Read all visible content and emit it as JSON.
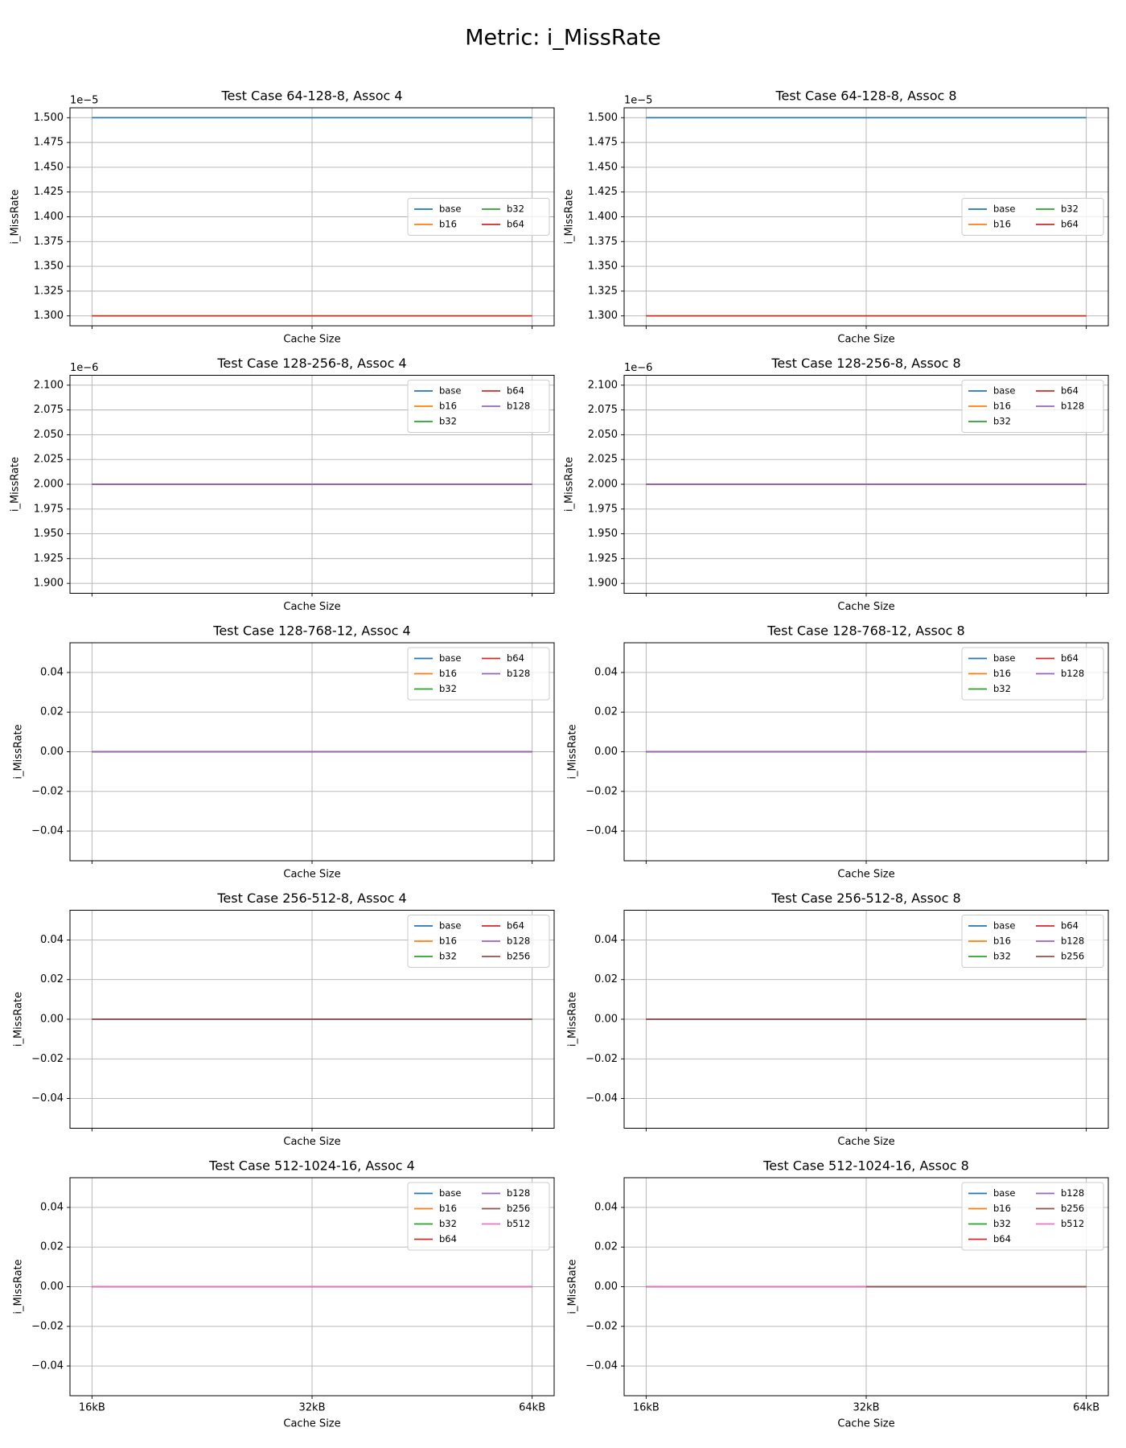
{
  "title": "Metric: i_MissRate",
  "chart_data": [
    {
      "type": "line",
      "title": "Test Case 64-128-8, Assoc 4",
      "xlabel": "Cache Size",
      "ylabel": "i_MissRate",
      "offset_label": "1e−5",
      "categories": [
        "16kB",
        "32kB",
        "64kB"
      ],
      "ylim": [
        1.29e-05,
        1.51e-05
      ],
      "yticks": [
        {
          "value": 1.3e-05,
          "label": "1.300"
        },
        {
          "value": 1.325e-05,
          "label": "1.325"
        },
        {
          "value": 1.35e-05,
          "label": "1.350"
        },
        {
          "value": 1.375e-05,
          "label": "1.375"
        },
        {
          "value": 1.4e-05,
          "label": "1.400"
        },
        {
          "value": 1.425e-05,
          "label": "1.425"
        },
        {
          "value": 1.45e-05,
          "label": "1.450"
        },
        {
          "value": 1.475e-05,
          "label": "1.475"
        },
        {
          "value": 1.5e-05,
          "label": "1.500"
        }
      ],
      "grid": true,
      "legend_loc": "center right",
      "series": [
        {
          "name": "base",
          "color": "#1f77b4",
          "values": [
            1.5e-05,
            1.5e-05,
            1.5e-05
          ]
        },
        {
          "name": "b16",
          "color": "#ff7f0e",
          "values": [
            1.3e-05,
            1.3e-05,
            1.3e-05
          ]
        },
        {
          "name": "b32",
          "color": "#2ca02c",
          "values": [
            1.3e-05,
            1.3e-05,
            1.3e-05
          ]
        },
        {
          "name": "b64",
          "color": "#d62728",
          "values": [
            1.3e-05,
            1.3e-05,
            1.3e-05
          ]
        }
      ]
    },
    {
      "type": "line",
      "title": "Test Case 64-128-8, Assoc 8",
      "xlabel": "Cache Size",
      "ylabel": "i_MissRate",
      "offset_label": "1e−5",
      "categories": [
        "16kB",
        "32kB",
        "64kB"
      ],
      "ylim": [
        1.29e-05,
        1.51e-05
      ],
      "yticks": [
        {
          "value": 1.3e-05,
          "label": "1.300"
        },
        {
          "value": 1.325e-05,
          "label": "1.325"
        },
        {
          "value": 1.35e-05,
          "label": "1.350"
        },
        {
          "value": 1.375e-05,
          "label": "1.375"
        },
        {
          "value": 1.4e-05,
          "label": "1.400"
        },
        {
          "value": 1.425e-05,
          "label": "1.425"
        },
        {
          "value": 1.45e-05,
          "label": "1.450"
        },
        {
          "value": 1.475e-05,
          "label": "1.475"
        },
        {
          "value": 1.5e-05,
          "label": "1.500"
        }
      ],
      "grid": true,
      "legend_loc": "center right",
      "series": [
        {
          "name": "base",
          "color": "#1f77b4",
          "values": [
            1.5e-05,
            1.5e-05,
            1.5e-05
          ]
        },
        {
          "name": "b16",
          "color": "#ff7f0e",
          "values": [
            1.3e-05,
            1.3e-05,
            1.3e-05
          ]
        },
        {
          "name": "b32",
          "color": "#2ca02c",
          "values": [
            1.3e-05,
            1.3e-05,
            1.3e-05
          ]
        },
        {
          "name": "b64",
          "color": "#d62728",
          "values": [
            1.3e-05,
            1.3e-05,
            1.3e-05
          ]
        }
      ]
    },
    {
      "type": "line",
      "title": "Test Case 128-256-8, Assoc 4",
      "xlabel": "Cache Size",
      "ylabel": "i_MissRate",
      "offset_label": "1e−6",
      "categories": [
        "16kB",
        "32kB",
        "64kB"
      ],
      "ylim": [
        1.89e-06,
        2.11e-06
      ],
      "yticks": [
        {
          "value": 1.9e-06,
          "label": "1.900"
        },
        {
          "value": 1.925e-06,
          "label": "1.925"
        },
        {
          "value": 1.95e-06,
          "label": "1.950"
        },
        {
          "value": 1.975e-06,
          "label": "1.975"
        },
        {
          "value": 2e-06,
          "label": "2.000"
        },
        {
          "value": 2.025e-06,
          "label": "2.025"
        },
        {
          "value": 2.05e-06,
          "label": "2.050"
        },
        {
          "value": 2.075e-06,
          "label": "2.075"
        },
        {
          "value": 2.1e-06,
          "label": "2.100"
        }
      ],
      "grid": true,
      "legend_loc": "upper right",
      "series": [
        {
          "name": "base",
          "color": "#1f77b4",
          "values": [
            2e-06,
            2e-06,
            2e-06
          ]
        },
        {
          "name": "b16",
          "color": "#ff7f0e",
          "values": [
            2e-06,
            2e-06,
            2e-06
          ]
        },
        {
          "name": "b32",
          "color": "#2ca02c",
          "values": [
            2e-06,
            2e-06,
            2e-06
          ]
        },
        {
          "name": "b64",
          "color": "#d62728",
          "values": [
            2e-06,
            2e-06,
            2e-06
          ]
        },
        {
          "name": "b128",
          "color": "#9467bd",
          "values": [
            2e-06,
            2e-06,
            2e-06
          ]
        }
      ]
    },
    {
      "type": "line",
      "title": "Test Case 128-256-8, Assoc 8",
      "xlabel": "Cache Size",
      "ylabel": "i_MissRate",
      "offset_label": "1e−6",
      "categories": [
        "16kB",
        "32kB",
        "64kB"
      ],
      "ylim": [
        1.89e-06,
        2.11e-06
      ],
      "yticks": [
        {
          "value": 1.9e-06,
          "label": "1.900"
        },
        {
          "value": 1.925e-06,
          "label": "1.925"
        },
        {
          "value": 1.95e-06,
          "label": "1.950"
        },
        {
          "value": 1.975e-06,
          "label": "1.975"
        },
        {
          "value": 2e-06,
          "label": "2.000"
        },
        {
          "value": 2.025e-06,
          "label": "2.025"
        },
        {
          "value": 2.05e-06,
          "label": "2.050"
        },
        {
          "value": 2.075e-06,
          "label": "2.075"
        },
        {
          "value": 2.1e-06,
          "label": "2.100"
        }
      ],
      "grid": true,
      "legend_loc": "upper right",
      "series": [
        {
          "name": "base",
          "color": "#1f77b4",
          "values": [
            2e-06,
            2e-06,
            2e-06
          ]
        },
        {
          "name": "b16",
          "color": "#ff7f0e",
          "values": [
            2e-06,
            2e-06,
            2e-06
          ]
        },
        {
          "name": "b32",
          "color": "#2ca02c",
          "values": [
            2e-06,
            2e-06,
            2e-06
          ]
        },
        {
          "name": "b64",
          "color": "#d62728",
          "values": [
            2e-06,
            2e-06,
            2e-06
          ]
        },
        {
          "name": "b128",
          "color": "#9467bd",
          "values": [
            2e-06,
            2e-06,
            2e-06
          ]
        }
      ]
    },
    {
      "type": "line",
      "title": "Test Case 128-768-12, Assoc 4",
      "xlabel": "Cache Size",
      "ylabel": "i_MissRate",
      "categories": [
        "16kB",
        "32kB",
        "64kB"
      ],
      "ylim": [
        -0.055,
        0.055
      ],
      "yticks": [
        {
          "value": -0.04,
          "label": "−0.04"
        },
        {
          "value": -0.02,
          "label": "−0.02"
        },
        {
          "value": 0,
          "label": "0.00"
        },
        {
          "value": 0.02,
          "label": "0.02"
        },
        {
          "value": 0.04,
          "label": "0.04"
        }
      ],
      "grid": true,
      "legend_loc": "upper right",
      "series": [
        {
          "name": "base",
          "color": "#1f77b4",
          "values": [
            0,
            0,
            0
          ]
        },
        {
          "name": "b16",
          "color": "#ff7f0e",
          "values": [
            0,
            0,
            0
          ]
        },
        {
          "name": "b32",
          "color": "#2ca02c",
          "values": [
            0,
            0,
            0
          ]
        },
        {
          "name": "b64",
          "color": "#d62728",
          "values": [
            0,
            0,
            0
          ]
        },
        {
          "name": "b128",
          "color": "#9467bd",
          "values": [
            0,
            0,
            0
          ]
        }
      ]
    },
    {
      "type": "line",
      "title": "Test Case 128-768-12, Assoc 8",
      "xlabel": "Cache Size",
      "ylabel": "i_MissRate",
      "categories": [
        "16kB",
        "32kB",
        "64kB"
      ],
      "ylim": [
        -0.055,
        0.055
      ],
      "yticks": [
        {
          "value": -0.04,
          "label": "−0.04"
        },
        {
          "value": -0.02,
          "label": "−0.02"
        },
        {
          "value": 0,
          "label": "0.00"
        },
        {
          "value": 0.02,
          "label": "0.02"
        },
        {
          "value": 0.04,
          "label": "0.04"
        }
      ],
      "grid": true,
      "legend_loc": "upper right",
      "series": [
        {
          "name": "base",
          "color": "#1f77b4",
          "values": [
            0,
            0,
            0
          ]
        },
        {
          "name": "b16",
          "color": "#ff7f0e",
          "values": [
            0,
            0,
            0
          ]
        },
        {
          "name": "b32",
          "color": "#2ca02c",
          "values": [
            0,
            0,
            0
          ]
        },
        {
          "name": "b64",
          "color": "#d62728",
          "values": [
            0,
            0,
            0
          ]
        },
        {
          "name": "b128",
          "color": "#9467bd",
          "values": [
            0,
            0,
            0
          ]
        }
      ]
    },
    {
      "type": "line",
      "title": "Test Case 256-512-8, Assoc 4",
      "xlabel": "Cache Size",
      "ylabel": "i_MissRate",
      "categories": [
        "16kB",
        "32kB",
        "64kB"
      ],
      "ylim": [
        -0.055,
        0.055
      ],
      "yticks": [
        {
          "value": -0.04,
          "label": "−0.04"
        },
        {
          "value": -0.02,
          "label": "−0.02"
        },
        {
          "value": 0,
          "label": "0.00"
        },
        {
          "value": 0.02,
          "label": "0.02"
        },
        {
          "value": 0.04,
          "label": "0.04"
        }
      ],
      "grid": true,
      "legend_loc": "upper right",
      "series": [
        {
          "name": "base",
          "color": "#1f77b4",
          "values": [
            0,
            0,
            0
          ]
        },
        {
          "name": "b16",
          "color": "#ff7f0e",
          "values": [
            0,
            0,
            0
          ]
        },
        {
          "name": "b32",
          "color": "#2ca02c",
          "values": [
            0,
            0,
            0
          ]
        },
        {
          "name": "b64",
          "color": "#d62728",
          "values": [
            0,
            0,
            0
          ]
        },
        {
          "name": "b128",
          "color": "#9467bd",
          "values": [
            0,
            0,
            0
          ]
        },
        {
          "name": "b256",
          "color": "#8c564b",
          "values": [
            0,
            0,
            0
          ]
        }
      ]
    },
    {
      "type": "line",
      "title": "Test Case 256-512-8, Assoc 8",
      "xlabel": "Cache Size",
      "ylabel": "i_MissRate",
      "categories": [
        "16kB",
        "32kB",
        "64kB"
      ],
      "ylim": [
        -0.055,
        0.055
      ],
      "yticks": [
        {
          "value": -0.04,
          "label": "−0.04"
        },
        {
          "value": -0.02,
          "label": "−0.02"
        },
        {
          "value": 0,
          "label": "0.00"
        },
        {
          "value": 0.02,
          "label": "0.02"
        },
        {
          "value": 0.04,
          "label": "0.04"
        }
      ],
      "grid": true,
      "legend_loc": "upper right",
      "series": [
        {
          "name": "base",
          "color": "#1f77b4",
          "values": [
            0,
            0,
            0
          ]
        },
        {
          "name": "b16",
          "color": "#ff7f0e",
          "values": [
            0,
            0,
            0
          ]
        },
        {
          "name": "b32",
          "color": "#2ca02c",
          "values": [
            0,
            0,
            0
          ]
        },
        {
          "name": "b64",
          "color": "#d62728",
          "values": [
            0,
            0,
            0
          ]
        },
        {
          "name": "b128",
          "color": "#9467bd",
          "values": [
            0,
            0,
            0
          ]
        },
        {
          "name": "b256",
          "color": "#8c564b",
          "values": [
            0,
            0,
            0
          ]
        }
      ]
    },
    {
      "type": "line",
      "title": "Test Case 512-1024-16, Assoc 4",
      "xlabel": "Cache Size",
      "ylabel": "i_MissRate",
      "categories": [
        "16kB",
        "32kB",
        "64kB"
      ],
      "ylim": [
        -0.055,
        0.055
      ],
      "yticks": [
        {
          "value": -0.04,
          "label": "−0.04"
        },
        {
          "value": -0.02,
          "label": "−0.02"
        },
        {
          "value": 0,
          "label": "0.00"
        },
        {
          "value": 0.02,
          "label": "0.02"
        },
        {
          "value": 0.04,
          "label": "0.04"
        }
      ],
      "grid": true,
      "legend_loc": "upper right",
      "series": [
        {
          "name": "base",
          "color": "#1f77b4",
          "values": [
            0,
            0,
            0
          ]
        },
        {
          "name": "b16",
          "color": "#ff7f0e",
          "values": [
            0,
            0,
            0
          ]
        },
        {
          "name": "b32",
          "color": "#2ca02c",
          "values": [
            0,
            0,
            0
          ]
        },
        {
          "name": "b64",
          "color": "#d62728",
          "values": [
            0,
            0,
            0
          ]
        },
        {
          "name": "b128",
          "color": "#9467bd",
          "values": [
            0,
            0,
            0
          ]
        },
        {
          "name": "b256",
          "color": "#8c564b",
          "values": [
            0,
            0,
            0
          ]
        },
        {
          "name": "b512",
          "color": "#e377c2",
          "values": [
            0,
            0,
            0
          ]
        }
      ]
    },
    {
      "type": "line",
      "title": "Test Case 512-1024-16, Assoc 8",
      "xlabel": "Cache Size",
      "ylabel": "i_MissRate",
      "categories": [
        "16kB",
        "32kB",
        "64kB"
      ],
      "ylim": [
        -0.055,
        0.055
      ],
      "yticks": [
        {
          "value": -0.04,
          "label": "−0.04"
        },
        {
          "value": -0.02,
          "label": "−0.02"
        },
        {
          "value": 0,
          "label": "0.00"
        },
        {
          "value": 0.02,
          "label": "0.02"
        },
        {
          "value": 0.04,
          "label": "0.04"
        }
      ],
      "grid": true,
      "legend_loc": "upper right",
      "series": [
        {
          "name": "base",
          "color": "#1f77b4",
          "values": [
            0,
            0,
            0
          ]
        },
        {
          "name": "b16",
          "color": "#ff7f0e",
          "values": [
            0,
            0,
            0
          ]
        },
        {
          "name": "b32",
          "color": "#2ca02c",
          "values": [
            0,
            0,
            0
          ]
        },
        {
          "name": "b64",
          "color": "#d62728",
          "values": [
            0,
            0,
            0
          ]
        },
        {
          "name": "b128",
          "color": "#9467bd",
          "values": [
            0,
            0,
            0
          ]
        },
        {
          "name": "b256",
          "color": "#8c564b",
          "values": [
            0,
            0,
            0
          ]
        },
        {
          "name": "b512",
          "color": "#e377c2",
          "values": [
            0,
            0,
            null
          ]
        }
      ]
    }
  ]
}
